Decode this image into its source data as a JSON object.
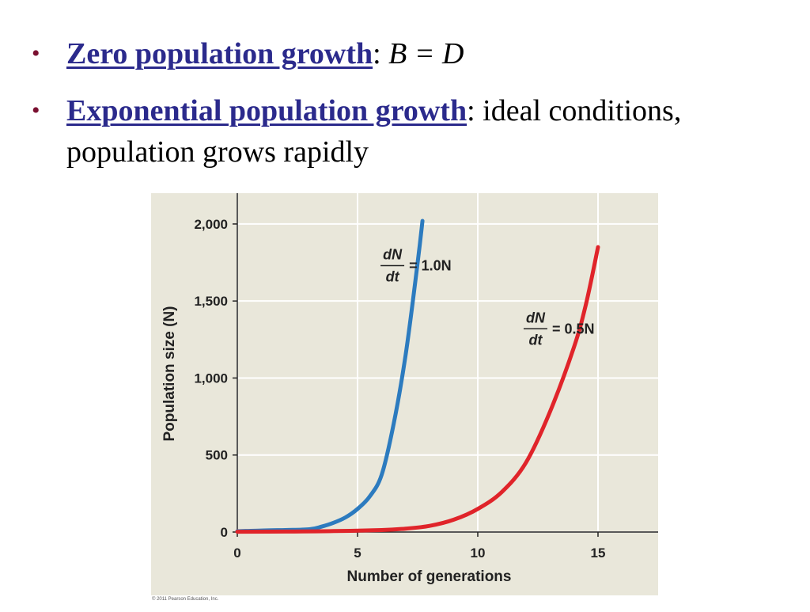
{
  "bullets": [
    {
      "term": "Zero population growth",
      "separator": ":",
      "rest": "B = D"
    },
    {
      "term": "Exponential population growth",
      "separator": ":",
      "rest": "ideal conditions, population grows rapidly"
    }
  ],
  "colors": {
    "plot_background": "#e9e7da",
    "grid": "#ffffff",
    "series_a": "#2c7bbf",
    "series_b": "#e0242a",
    "bullet": "#7a1030",
    "term": "#2b2a8c"
  },
  "chart_data": {
    "type": "line",
    "xlabel": "Number of generations",
    "ylabel": "Population size (N)",
    "xlim": [
      0,
      17.5
    ],
    "ylim": [
      0,
      2200
    ],
    "xticks": [
      0,
      5,
      10,
      15
    ],
    "xtick_labels": [
      "0",
      "5",
      "10",
      "15"
    ],
    "yticks": [
      0,
      500,
      1000,
      1500,
      2000
    ],
    "ytick_labels": [
      "0",
      "500",
      "1,000",
      "1,500",
      "2,000"
    ],
    "grid": true,
    "series": [
      {
        "x": [
          0,
          1,
          2,
          3,
          3.5,
          4,
          4.5,
          5,
          5.5,
          6,
          6.5,
          7,
          7.5,
          7.7
        ],
        "values": [
          5,
          10,
          13,
          18,
          35,
          60,
          95,
          150,
          230,
          370,
          700,
          1150,
          1750,
          2020
        ]
      },
      {
        "x": [
          0,
          2,
          4,
          6,
          7,
          8,
          9,
          10,
          11,
          12,
          13,
          14,
          14.5,
          15
        ],
        "values": [
          2,
          3,
          6,
          13,
          22,
          40,
          80,
          150,
          260,
          450,
          780,
          1200,
          1480,
          1850
        ]
      }
    ],
    "annotations": [
      {
        "numerator": "dN",
        "denominator": "dt",
        "equation": "= 1.0N",
        "anchor_x": 6.45,
        "anchor_y": 1750
      },
      {
        "numerator": "dN",
        "denominator": "dt",
        "equation": "= 0.5N",
        "anchor_x": 12.4,
        "anchor_y": 1340
      }
    ]
  },
  "copyright": "© 2011 Pearson Education, Inc."
}
